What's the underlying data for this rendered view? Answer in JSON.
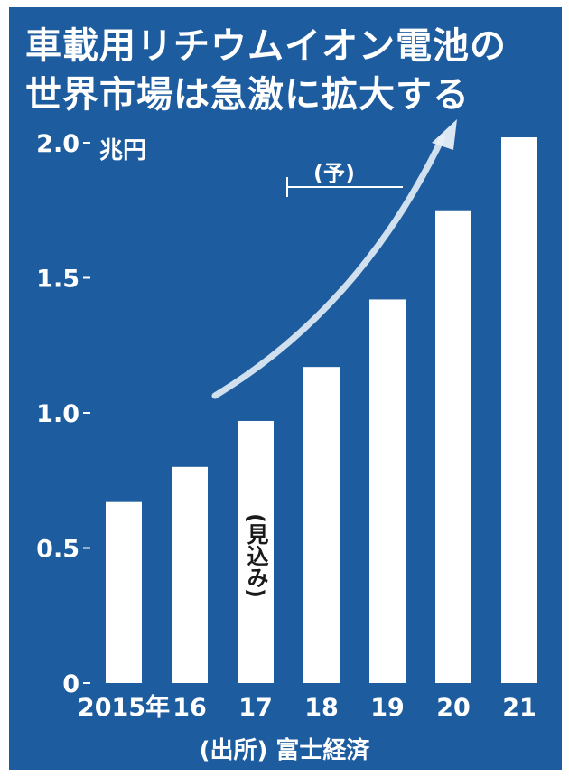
{
  "title_lines": [
    "車載用リチウムイオン電池の",
    "世界市場は急激に拡大する"
  ],
  "chart_data": {
    "type": "bar",
    "title": "車載用リチウムイオン電池の世界市場は急激に拡大する",
    "unit": "兆円",
    "categories": [
      "2015年",
      "16",
      "17",
      "18",
      "19",
      "20",
      "21"
    ],
    "values": [
      0.67,
      0.8,
      0.97,
      1.17,
      1.42,
      1.75,
      2.02
    ],
    "ylim": [
      0,
      2.0
    ],
    "yticks": [
      "0",
      "0.5",
      "1.0",
      "1.5",
      "2.0"
    ],
    "annotations": {
      "estimate": "(見込み)",
      "forecast": "(予)"
    },
    "source": "(出所) 富士経済",
    "colors": {
      "background": "#1d5c9e",
      "bar": "#ffffff",
      "text": "#ffffff",
      "arrow": "#e6eef6"
    }
  }
}
